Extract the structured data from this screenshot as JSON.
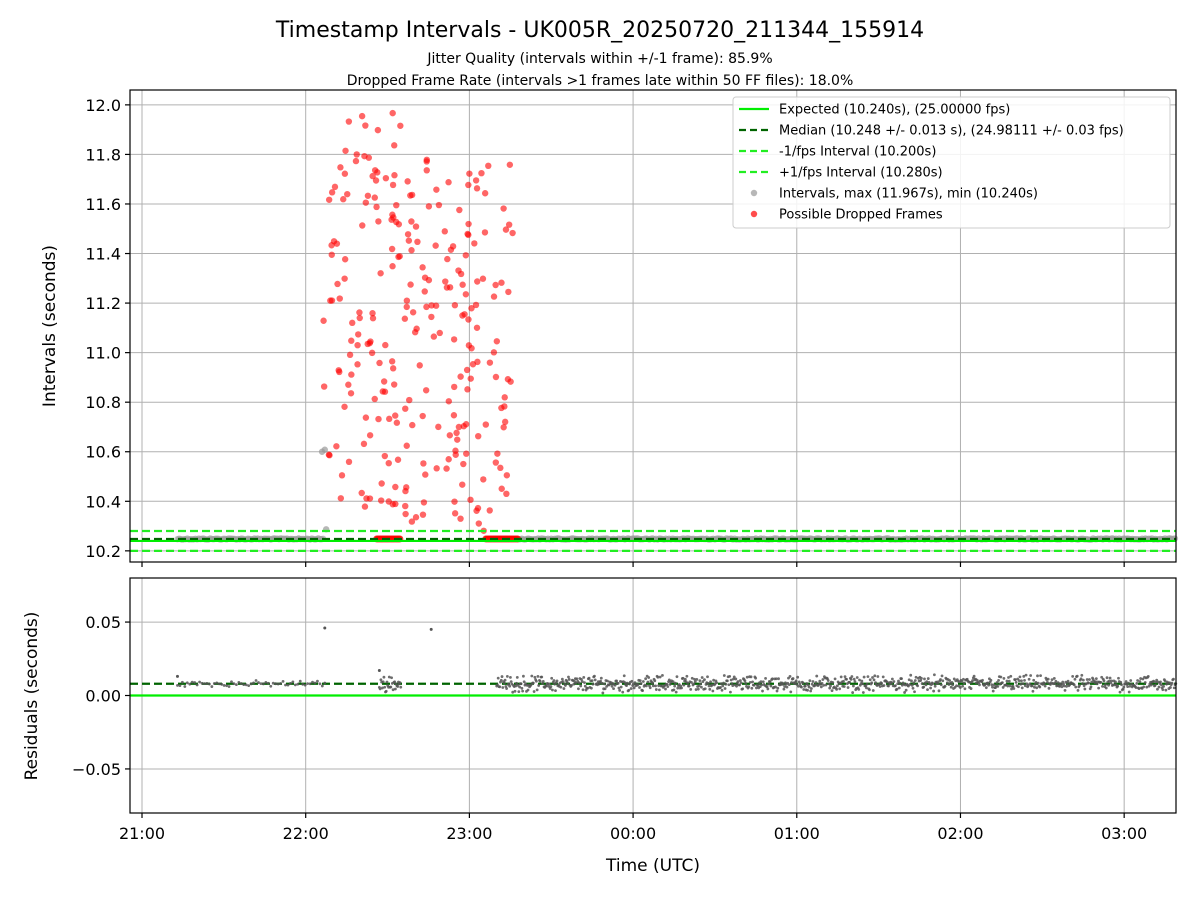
{
  "chart_data": {
    "type": "scatter",
    "title": "Timestamp Intervals - UK005R_20250720_211344_155914",
    "subtitle_lines": [
      "Jitter Quality (intervals within +/-1 frame): 85.9%",
      "Dropped Frame Rate (intervals >1 frames late within 50 FF files): 18.0%"
    ],
    "xlabel": "Time (UTC)",
    "x_ticks": [
      "21:00",
      "22:00",
      "23:00",
      "00:00",
      "01:00",
      "02:00",
      "03:00"
    ],
    "x_tick_minutes_after_21": [
      0,
      60,
      120,
      180,
      240,
      300,
      360
    ],
    "xlim_minutes_after_21": [
      -4.4,
      379
    ],
    "grid": true,
    "colors": {
      "expected": "#00ee00",
      "median": "#006400",
      "fps_band": "#22ee22",
      "intervals": "#999999",
      "dropped": "#ff0000",
      "residuals": "#555555"
    },
    "top_panel": {
      "ylabel": "Intervals (seconds)",
      "ylim": [
        10.155,
        12.06
      ],
      "y_ticks": [
        "10.2",
        "10.4",
        "10.6",
        "10.8",
        "11.0",
        "11.2",
        "11.4",
        "11.6",
        "11.8",
        "12.0"
      ],
      "expected": 10.24,
      "median": 10.248,
      "minus_fps": 10.2,
      "plus_fps": 10.28,
      "normal_segments": [
        {
          "x0": 13,
          "x1": 67,
          "y": 10.248
        },
        {
          "x0": 138,
          "x1": 379,
          "y": 10.248
        }
      ],
      "normal_extra_points": [
        {
          "x": 67,
          "y": 10.608
        },
        {
          "x": 67.5,
          "y": 10.287
        },
        {
          "x": 66,
          "y": 10.6
        }
      ],
      "dropped_clusters": [
        {
          "x0": 66.5,
          "x1": 95,
          "ymin": 10.37,
          "ymax": 11.97,
          "count": 110
        },
        {
          "x0": 96,
          "x1": 136,
          "ymin": 10.28,
          "ymax": 11.82,
          "count": 150
        }
      ],
      "dropped_baseline": [
        {
          "x0": 86,
          "x1": 95,
          "y": 10.248
        },
        {
          "x0": 126,
          "x1": 138,
          "y": 10.248
        }
      ],
      "legend": {
        "placement": "top-right",
        "entries": [
          {
            "kind": "line",
            "label": "Expected (10.240s), (25.00000 fps)"
          },
          {
            "kind": "dashed-dark",
            "label": "Median (10.248 +/- 0.013 s), (24.98111 +/- 0.03 fps)"
          },
          {
            "kind": "dashed-green",
            "label": "-1/fps Interval (10.200s)"
          },
          {
            "kind": "dashed-green",
            "label": "+1/fps Interval (10.280s)"
          },
          {
            "kind": "dot-gray",
            "label": "Intervals, max (11.967s), min (10.240s)"
          },
          {
            "kind": "dot-red",
            "label": "Possible Dropped Frames"
          }
        ]
      }
    },
    "bottom_panel": {
      "ylabel": "Residuals (seconds)",
      "ylim": [
        -0.08,
        0.08
      ],
      "y_ticks": [
        "−0.05",
        "0.00",
        "0.05"
      ],
      "y_tick_values": [
        -0.05,
        0.0,
        0.05
      ],
      "expected": 0.0,
      "median": 0.008,
      "segments": [
        {
          "x0": 13,
          "x1": 67,
          "center": 0.008,
          "spread": 0.0015
        },
        {
          "x0": 87,
          "x1": 95,
          "center": 0.008,
          "spread": 0.004
        },
        {
          "x0": 130,
          "x1": 379,
          "center": 0.008,
          "spread": 0.004
        }
      ],
      "outliers": [
        {
          "x": 67,
          "y": 0.046
        },
        {
          "x": 106,
          "y": 0.045
        },
        {
          "x": 87,
          "y": 0.017
        },
        {
          "x": 13,
          "y": 0.013
        }
      ]
    }
  }
}
